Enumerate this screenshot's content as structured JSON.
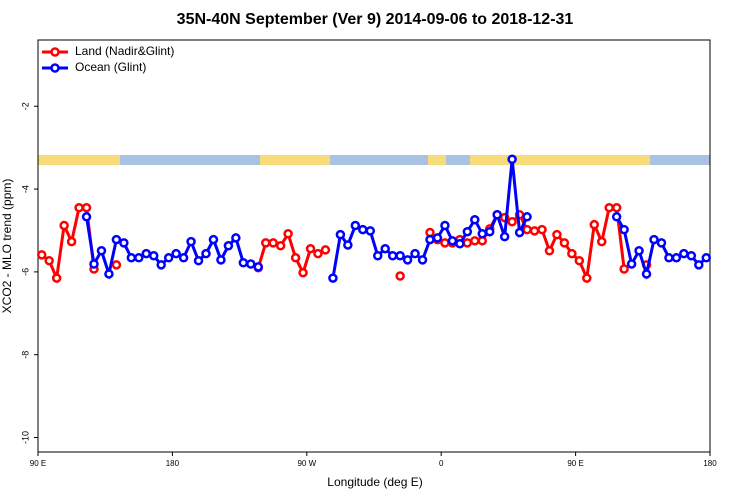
{
  "chart_data": {
    "type": "line",
    "title": "35N-40N September (Ver 9)   2014-09-06 to 2018-12-31",
    "x_label": "Longitude (deg E)",
    "y_label": "XCO2 - MLO trend (ppm)",
    "legend": "top-left",
    "xlim": [
      90,
      540
    ],
    "xticks": [
      {
        "value": 90,
        "label": "90 E"
      },
      {
        "value": 180,
        "label": "180"
      },
      {
        "value": 270,
        "label": "90 W"
      },
      {
        "value": 360,
        "label": "0"
      },
      {
        "value": 450,
        "label": "90 E"
      },
      {
        "value": 540,
        "label": "180"
      }
    ],
    "ylim": [
      -10.35,
      -0.4
    ],
    "yticks": [
      -10,
      -8,
      -6,
      -4,
      -2
    ],
    "x": [
      92.5,
      97.5,
      102.5,
      107.5,
      112.5,
      117.5,
      122.5,
      127.5,
      132.5,
      137.5,
      142.5,
      147.5,
      152.5,
      157.5,
      162.5,
      167.5,
      172.5,
      177.5,
      182.5,
      187.5,
      192.5,
      197.5,
      202.5,
      207.5,
      212.5,
      217.5,
      222.5,
      227.5,
      232.5,
      237.5,
      242.5,
      247.5,
      252.5,
      257.5,
      262.5,
      267.5,
      272.5,
      277.5,
      282.5,
      287.5,
      292.5,
      297.5,
      302.5,
      307.5,
      312.5,
      317.5,
      322.5,
      327.5,
      332.5,
      337.5,
      342.5,
      347.5,
      352.5,
      357.5,
      362.5,
      367.5,
      372.5,
      377.5,
      382.5,
      387.5,
      392.5,
      397.5,
      402.5,
      407.5,
      412.5,
      417.5,
      422.5,
      427.5,
      432.5,
      437.5,
      442.5,
      447.5,
      452.5,
      457.5,
      462.5,
      467.5,
      472.5,
      477.5,
      482.5,
      487.5,
      492.5,
      497.5,
      502.5,
      507.5,
      512.5,
      517.5,
      522.5,
      527.5,
      532.5,
      537.5
    ],
    "series": [
      {
        "name": "Land (Nadir&Glint)",
        "color": "#ff0000",
        "values": [
          -5.59,
          -5.73,
          -6.15,
          -4.88,
          -5.27,
          -4.45,
          -4.45,
          -5.93,
          null,
          null,
          -5.83,
          null,
          null,
          null,
          null,
          null,
          null,
          null,
          null,
          null,
          null,
          null,
          null,
          null,
          null,
          null,
          null,
          null,
          null,
          -5.9,
          -5.3,
          -5.3,
          -5.37,
          -5.08,
          -5.66,
          -6.02,
          -5.44,
          -5.56,
          -5.47,
          null,
          null,
          null,
          null,
          null,
          null,
          null,
          null,
          null,
          -6.1,
          null,
          null,
          null,
          -5.05,
          -5.22,
          -5.3,
          -5.3,
          -5.22,
          -5.3,
          -5.25,
          -5.25,
          -4.96,
          -4.62,
          -4.69,
          -4.79,
          -4.62,
          -4.98,
          -5.01,
          -4.98,
          -5.49,
          -5.1,
          -5.3,
          -5.56,
          -5.73,
          -6.15,
          -4.86,
          -5.27,
          -4.45,
          -4.45,
          -5.93,
          null,
          null,
          -5.83,
          null,
          null,
          null,
          null,
          null,
          null,
          null,
          null
        ]
      },
      {
        "name": "Ocean (Glint)",
        "color": "#0000ff",
        "values": [
          null,
          null,
          null,
          null,
          null,
          null,
          -4.67,
          -5.81,
          -5.49,
          -6.05,
          -5.22,
          -5.3,
          -5.66,
          -5.66,
          -5.56,
          -5.61,
          -5.83,
          -5.66,
          -5.56,
          -5.66,
          -5.27,
          -5.73,
          -5.56,
          -5.22,
          -5.71,
          -5.37,
          -5.18,
          -5.78,
          -5.81,
          -5.88,
          null,
          null,
          null,
          null,
          null,
          null,
          null,
          null,
          null,
          -6.15,
          -5.1,
          -5.35,
          -4.88,
          -4.98,
          -5.01,
          -5.61,
          -5.44,
          -5.61,
          -5.61,
          -5.71,
          -5.56,
          -5.71,
          -5.22,
          -5.18,
          -4.88,
          -5.25,
          -5.32,
          -5.03,
          -4.74,
          -5.08,
          -5.03,
          -4.62,
          -5.15,
          -3.28,
          -5.05,
          -4.67,
          null,
          null,
          null,
          null,
          null,
          null,
          null,
          null,
          null,
          null,
          null,
          -4.67,
          -4.98,
          -5.81,
          -5.49,
          -6.05,
          -5.22,
          -5.3,
          -5.66,
          -5.66,
          -5.56,
          -5.61,
          -5.83,
          -5.66
        ]
      }
    ]
  }
}
